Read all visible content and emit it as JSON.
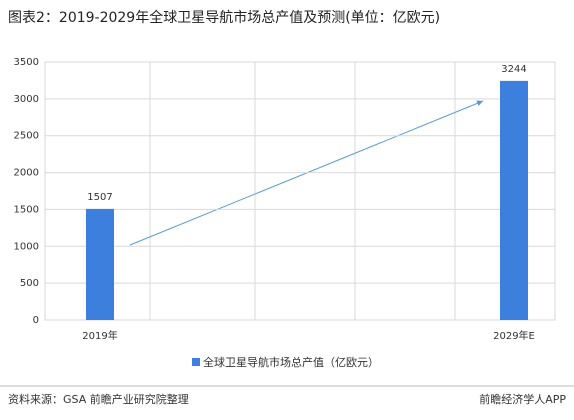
{
  "chart_data": {
    "type": "bar",
    "title": "图表2：2019-2029年全球卫星导航市场总产值及预测(单位：亿欧元)",
    "categories": [
      "2019年",
      "2029年E"
    ],
    "series": [
      {
        "name": "全球卫星导航市场总产值（亿欧元）",
        "color": "#3c7fdc",
        "values": [
          1507,
          3244
        ]
      }
    ],
    "ylim": [
      0,
      3500
    ],
    "yticks": [
      0,
      500,
      1000,
      1500,
      2000,
      2500,
      3000,
      3500
    ],
    "grid": true
  },
  "footer": {
    "source": "资料来源：GSA 前瞻产业研究院整理",
    "brand": "前瞻经济学人APP"
  }
}
